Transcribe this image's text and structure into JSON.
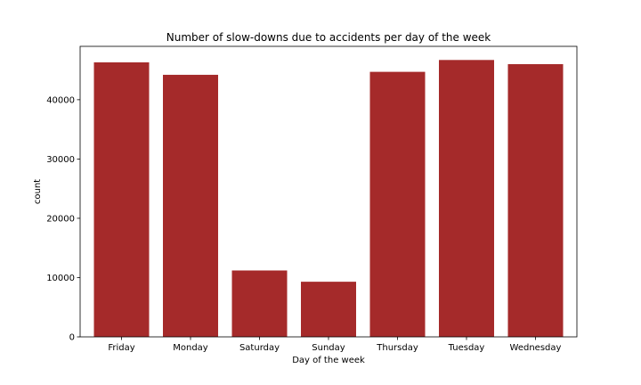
{
  "chart_data": {
    "type": "bar",
    "title": "Number of slow-downs due to accidents per day of the week",
    "xlabel": "Day of the week",
    "ylabel": "count",
    "categories": [
      "Friday",
      "Monday",
      "Saturday",
      "Sunday",
      "Thursday",
      "Tuesday",
      "Wednesday"
    ],
    "values": [
      46300,
      44200,
      11200,
      9300,
      44700,
      46700,
      46000
    ],
    "ylim": [
      0,
      49000
    ],
    "yticks": [
      0,
      10000,
      20000,
      30000,
      40000
    ],
    "bar_color": "#a52a2a",
    "grid": false
  }
}
